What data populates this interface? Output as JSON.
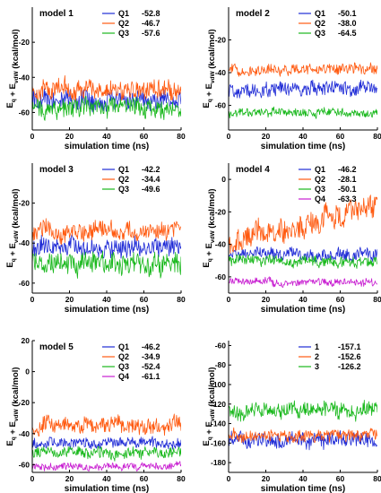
{
  "figure": {
    "xlabel": "simulation time (ns)",
    "ylabel": "(kcal/mol)",
    "ylabel_eq_main": "E",
    "ylabel_eq_sub": "q",
    "ylabel_plus": " + ",
    "ylabel_evdw_main": "E",
    "ylabel_evdw_sub": "vdW"
  },
  "colors": {
    "blue": "#1f2bd6",
    "orange": "#ff5a10",
    "green": "#19b81c",
    "magenta": "#c81ed1"
  },
  "chart_data": [
    {
      "type": "line",
      "title": "model 1",
      "xlim": [
        0,
        80
      ],
      "ylim": [
        -70,
        0
      ],
      "xticks": [
        0,
        20,
        40,
        60,
        80
      ],
      "yticks": [
        -20,
        -40,
        -60
      ],
      "show_ylabel": true,
      "x": [
        0,
        80
      ],
      "series": [
        {
          "name": "Q1",
          "value": "-52.8",
          "color": "blue",
          "mean": -52.8,
          "spread": 6
        },
        {
          "name": "Q2",
          "value": "-46.7",
          "color": "orange",
          "mean": -46.7,
          "spread": 6
        },
        {
          "name": "Q3",
          "value": "-57.6",
          "color": "green",
          "mean": -57.6,
          "spread": 6
        }
      ]
    },
    {
      "type": "line",
      "title": "model 2",
      "xlim": [
        0,
        80
      ],
      "ylim": [
        -75,
        0
      ],
      "xticks": [
        0,
        20,
        40,
        60,
        80
      ],
      "yticks": [
        -20,
        -40,
        -60
      ],
      "show_ylabel": true,
      "x": [
        0,
        80
      ],
      "series": [
        {
          "name": "Q1",
          "value": "-50.1",
          "color": "blue",
          "mean": -50.1,
          "spread": 5
        },
        {
          "name": "Q2",
          "value": "-38.0",
          "color": "orange",
          "mean": -38.0,
          "spread": 3.5
        },
        {
          "name": "Q3",
          "value": "-64.5",
          "color": "green",
          "mean": -64.5,
          "spread": 3
        }
      ]
    },
    {
      "type": "line",
      "title": "model 3",
      "xlim": [
        0,
        80
      ],
      "ylim": [
        -65,
        0
      ],
      "xticks": [
        0,
        20,
        40,
        60,
        80
      ],
      "yticks": [
        -20,
        -40,
        -60
      ],
      "show_ylabel": true,
      "x": [
        0,
        80
      ],
      "series": [
        {
          "name": "Q1",
          "value": "-42.2",
          "color": "blue",
          "mean": -42.2,
          "spread": 5
        },
        {
          "name": "Q2",
          "value": "-34.4",
          "color": "orange",
          "mean": -34.4,
          "spread": 5
        },
        {
          "name": "Q3",
          "value": "-49.6",
          "color": "green",
          "mean": -49.6,
          "spread": 6
        }
      ]
    },
    {
      "type": "line",
      "title": "model 4",
      "xlim": [
        0,
        80
      ],
      "ylim": [
        -70,
        10
      ],
      "xticks": [
        0,
        20,
        40,
        60,
        80
      ],
      "yticks": [
        0,
        -20,
        -40,
        -60
      ],
      "show_ylabel": true,
      "x": [
        0,
        80
      ],
      "series": [
        {
          "name": "Q1",
          "value": "-46.2",
          "color": "blue",
          "mean": -46.2,
          "spread": 4
        },
        {
          "name": "Q2",
          "value": "-28.1",
          "color": "orange",
          "mean": -28.1,
          "spread": 8,
          "trend": [
            -40,
            -15
          ]
        },
        {
          "name": "Q3",
          "value": "-50.1",
          "color": "green",
          "mean": -50.1,
          "spread": 3.5
        },
        {
          "name": "Q4",
          "value": "-63.3",
          "color": "magenta",
          "mean": -63.3,
          "spread": 2.5
        }
      ]
    },
    {
      "type": "line",
      "title": "model 5",
      "xlim": [
        0,
        80
      ],
      "ylim": [
        -65,
        20
      ],
      "xticks": [
        0,
        20,
        40,
        60,
        80
      ],
      "yticks": [
        20,
        0,
        -20,
        -40,
        -60
      ],
      "show_ylabel": true,
      "x": [
        0,
        80
      ],
      "series": [
        {
          "name": "Q1",
          "value": "-46.2",
          "color": "blue",
          "mean": -46.2,
          "spread": 4
        },
        {
          "name": "Q2",
          "value": "-34.9",
          "color": "orange",
          "mean": -34.9,
          "spread": 6
        },
        {
          "name": "Q3",
          "value": "-52.4",
          "color": "green",
          "mean": -52.4,
          "spread": 4
        },
        {
          "name": "Q4",
          "value": "-61.1",
          "color": "magenta",
          "mean": -61.1,
          "spread": 2.5
        }
      ]
    },
    {
      "type": "line",
      "title": "",
      "xlim": [
        0,
        80
      ],
      "ylim": [
        -190,
        -55
      ],
      "xticks": [
        0,
        20,
        40,
        60,
        80
      ],
      "yticks": [
        -60,
        -80,
        -100,
        -120,
        -140,
        -160,
        -180
      ],
      "show_ylabel": true,
      "x": [
        0,
        80
      ],
      "series": [
        {
          "name": "1",
          "value": "-157.1",
          "color": "blue",
          "mean": -157.1,
          "spread": 9
        },
        {
          "name": "2",
          "value": "-152.6",
          "color": "orange",
          "mean": -152.6,
          "spread": 7
        },
        {
          "name": "3",
          "value": "-126.2",
          "color": "green",
          "mean": -126.2,
          "spread": 9
        }
      ]
    }
  ]
}
